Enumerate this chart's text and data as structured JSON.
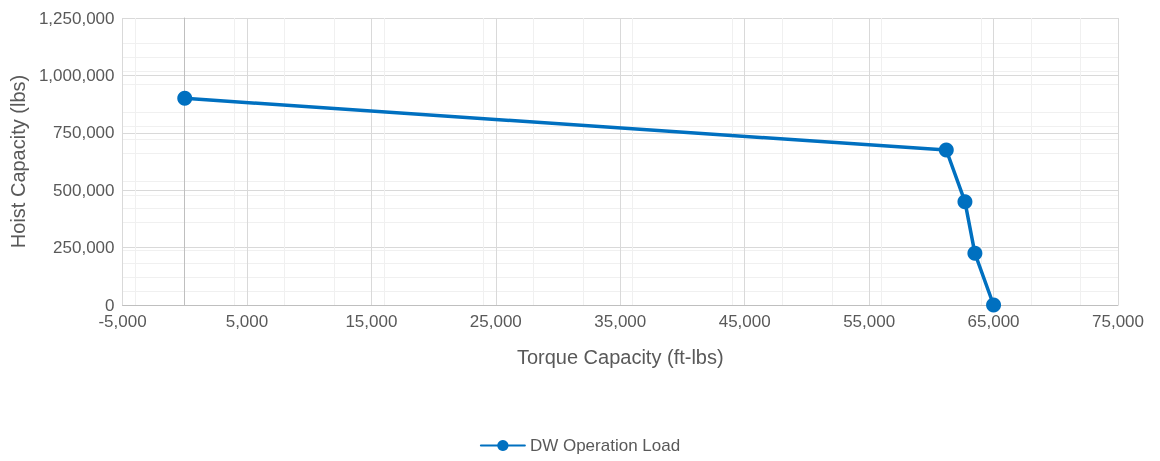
{
  "chart_data": {
    "type": "line",
    "xlabel": "Torque Capacity (ft-lbs)",
    "ylabel": "Hoist Capacity (lbs)",
    "x": [
      0,
      61200,
      62700,
      63500,
      65000
    ],
    "series": [
      {
        "name": "DW Operation Load",
        "color": "#0070c0",
        "values": [
          900000,
          675000,
          450000,
          225000,
          0
        ]
      }
    ],
    "xlim": [
      -5000,
      75000
    ],
    "xticks": [
      {
        "value": -5000,
        "label": "-5,000"
      },
      {
        "value": 5000,
        "label": "5,000"
      },
      {
        "value": 15000,
        "label": "15,000"
      },
      {
        "value": 25000,
        "label": "25,000"
      },
      {
        "value": 35000,
        "label": "35,000"
      },
      {
        "value": 45000,
        "label": "45,000"
      },
      {
        "value": 55000,
        "label": "55,000"
      },
      {
        "value": 65000,
        "label": "65,000"
      },
      {
        "value": 75000,
        "label": "75,000"
      }
    ],
    "ylim": [
      0,
      1250000
    ],
    "yticks": [
      0,
      {
        "value": 250000,
        "label": "250,000"
      },
      {
        "value": 500000,
        "label": "500,000"
      },
      {
        "value": 750000,
        "label": "750,000"
      },
      {
        "value": 1000000,
        "label": "1,000,000"
      },
      {
        "value": 1250000,
        "label": "1,250,000"
      }
    ],
    "grid": true,
    "legend": "bottom",
    "marker": "circle",
    "line_style": "solid"
  }
}
